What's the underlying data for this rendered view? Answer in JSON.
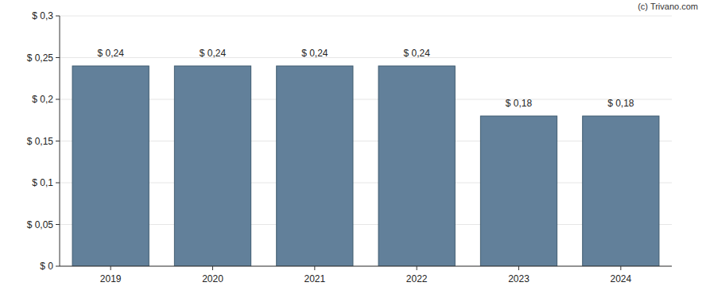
{
  "chart_data": {
    "type": "bar",
    "categories": [
      "2019",
      "2020",
      "2021",
      "2022",
      "2023",
      "2024"
    ],
    "values": [
      0.24,
      0.24,
      0.24,
      0.24,
      0.18,
      0.18
    ],
    "value_labels": [
      "$ 0,24",
      "$ 0,24",
      "$ 0,24",
      "$ 0,24",
      "$ 0,18",
      "$ 0,18"
    ],
    "color": "#62809a",
    "ylim": [
      0,
      0.3
    ],
    "yticks": [
      {
        "value": 0,
        "label": "$ 0"
      },
      {
        "value": 0.05,
        "label": "$ 0,05"
      },
      {
        "value": 0.1,
        "label": "$ 0,1"
      },
      {
        "value": 0.15,
        "label": "$ 0,15"
      },
      {
        "value": 0.2,
        "label": "$ 0,2"
      },
      {
        "value": 0.25,
        "label": "$ 0,25"
      },
      {
        "value": 0.3,
        "label": "$ 0,3"
      }
    ],
    "grid": true,
    "data_labels": true,
    "annotations": [
      "(c) Trivano.com"
    ]
  }
}
